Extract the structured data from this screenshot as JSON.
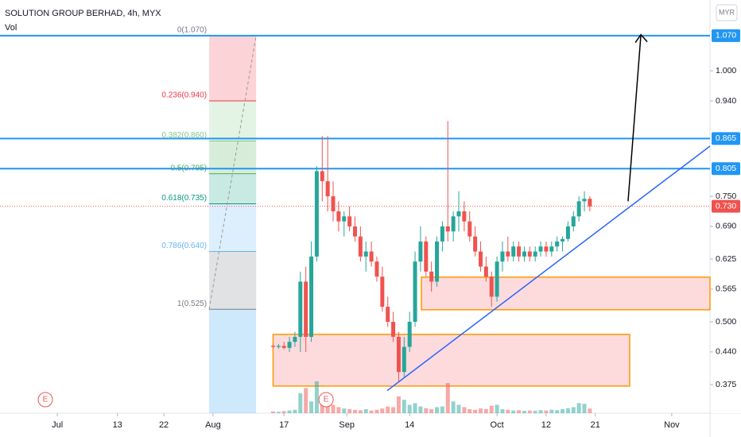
{
  "chart_data": {
    "type": "candlestick",
    "title": "SOLUTION GROUP BERHAD, 4h, MYX",
    "volume_label": "Vol",
    "currency": "MYR",
    "xlim": [
      0,
      260
    ],
    "xticks": [
      {
        "value": 21,
        "label": "Jul"
      },
      {
        "value": 43,
        "label": "13"
      },
      {
        "value": 60,
        "label": "22"
      },
      {
        "value": 78,
        "label": "Aug"
      },
      {
        "value": 104,
        "label": "17"
      },
      {
        "value": 127,
        "label": "Sep"
      },
      {
        "value": 150,
        "label": "14"
      },
      {
        "value": 182,
        "label": "Oct"
      },
      {
        "value": 200,
        "label": "12"
      },
      {
        "value": 218,
        "label": "21"
      },
      {
        "value": 246,
        "label": "Nov"
      }
    ],
    "ylim": [
      0.318,
      1.141
    ],
    "yticks": [
      {
        "value": 1.0,
        "label": "1.000"
      },
      {
        "value": 0.94,
        "label": "0.940"
      },
      {
        "value": 0.75,
        "label": "0.750"
      },
      {
        "value": 0.69,
        "label": "0.690"
      },
      {
        "value": 0.625,
        "label": "0.625"
      },
      {
        "value": 0.565,
        "label": "0.565"
      },
      {
        "value": 0.5,
        "label": "0.500"
      },
      {
        "value": 0.44,
        "label": "0.440"
      },
      {
        "value": 0.375,
        "label": "0.375"
      }
    ],
    "up_color": "#26a69a",
    "down_color": "#ef5350",
    "x": [
      100,
      102,
      104,
      106,
      108,
      110,
      112,
      114,
      116,
      118,
      120,
      122,
      124,
      126,
      128,
      130,
      132,
      134,
      136,
      138,
      140,
      142,
      144,
      146,
      148,
      150,
      152,
      154,
      156,
      158,
      160,
      162,
      164,
      166,
      168,
      170,
      172,
      174,
      176,
      178,
      180,
      182,
      184,
      186,
      188,
      190,
      192,
      194,
      196,
      198,
      200,
      202,
      204,
      206,
      208,
      210,
      212,
      214,
      216
    ],
    "open": [
      0.452,
      0.45,
      0.452,
      0.448,
      0.46,
      0.47,
      0.58,
      0.47,
      0.63,
      0.8,
      0.78,
      0.75,
      0.72,
      0.7,
      0.71,
      0.69,
      0.67,
      0.63,
      0.64,
      0.62,
      0.59,
      0.53,
      0.5,
      0.47,
      0.4,
      0.45,
      0.5,
      0.62,
      0.66,
      0.6,
      0.58,
      0.66,
      0.69,
      0.68,
      0.71,
      0.72,
      0.7,
      0.67,
      0.64,
      0.61,
      0.59,
      0.55,
      0.62,
      0.64,
      0.63,
      0.65,
      0.63,
      0.64,
      0.63,
      0.64,
      0.65,
      0.64,
      0.65,
      0.66,
      0.665,
      0.69,
      0.71,
      0.74,
      0.745
    ],
    "high": [
      0.455,
      0.456,
      0.46,
      0.47,
      0.48,
      0.6,
      0.61,
      0.66,
      0.81,
      0.87,
      0.87,
      0.78,
      0.74,
      0.72,
      0.73,
      0.71,
      0.69,
      0.66,
      0.66,
      0.63,
      0.61,
      0.55,
      0.52,
      0.48,
      0.47,
      0.52,
      0.64,
      0.69,
      0.67,
      0.62,
      0.67,
      0.7,
      0.9,
      0.72,
      0.76,
      0.74,
      0.72,
      0.69,
      0.66,
      0.63,
      0.6,
      0.63,
      0.66,
      0.67,
      0.66,
      0.66,
      0.65,
      0.65,
      0.65,
      0.66,
      0.66,
      0.66,
      0.67,
      0.67,
      0.7,
      0.72,
      0.75,
      0.76,
      0.75
    ],
    "low": [
      0.448,
      0.446,
      0.445,
      0.44,
      0.45,
      0.44,
      0.44,
      0.46,
      0.62,
      0.74,
      0.72,
      0.7,
      0.68,
      0.67,
      0.68,
      0.66,
      0.62,
      0.6,
      0.61,
      0.58,
      0.52,
      0.49,
      0.46,
      0.38,
      0.39,
      0.44,
      0.49,
      0.6,
      0.59,
      0.56,
      0.57,
      0.64,
      0.66,
      0.66,
      0.68,
      0.68,
      0.66,
      0.63,
      0.6,
      0.58,
      0.53,
      0.54,
      0.6,
      0.62,
      0.62,
      0.62,
      0.62,
      0.62,
      0.62,
      0.63,
      0.63,
      0.63,
      0.64,
      0.64,
      0.66,
      0.68,
      0.7,
      0.72,
      0.72
    ],
    "close": [
      0.45,
      0.452,
      0.448,
      0.46,
      0.47,
      0.58,
      0.47,
      0.63,
      0.8,
      0.78,
      0.75,
      0.72,
      0.7,
      0.71,
      0.69,
      0.67,
      0.63,
      0.64,
      0.62,
      0.59,
      0.53,
      0.5,
      0.47,
      0.4,
      0.45,
      0.5,
      0.62,
      0.66,
      0.6,
      0.58,
      0.66,
      0.69,
      0.68,
      0.71,
      0.72,
      0.7,
      0.67,
      0.64,
      0.61,
      0.59,
      0.55,
      0.62,
      0.64,
      0.63,
      0.65,
      0.63,
      0.64,
      0.63,
      0.64,
      0.65,
      0.64,
      0.65,
      0.66,
      0.665,
      0.69,
      0.71,
      0.74,
      0.745,
      0.73
    ],
    "volume": [
      5,
      4,
      6,
      8,
      10,
      60,
      75,
      35,
      95,
      55,
      40,
      25,
      18,
      14,
      12,
      10,
      9,
      12,
      8,
      10,
      14,
      20,
      18,
      50,
      40,
      25,
      30,
      20,
      15,
      12,
      18,
      20,
      90,
      35,
      25,
      18,
      12,
      10,
      14,
      12,
      22,
      25,
      12,
      10,
      8,
      9,
      7,
      8,
      7,
      9,
      8,
      10,
      9,
      12,
      15,
      18,
      30,
      28,
      14
    ],
    "fib_levels": [
      {
        "label": "0(1.070)",
        "price": 1.07,
        "color": "#787b86",
        "fill": "rgba(242,54,69,0.22)"
      },
      {
        "label": "0.236(0.940)",
        "price": 0.94,
        "color": "#f23645",
        "fill": "rgba(129,199,132,0.22)"
      },
      {
        "label": "0.382(0.860)",
        "price": 0.86,
        "color": "#81c784",
        "fill": "rgba(76,175,80,0.22)"
      },
      {
        "label": "0.5(0.795)",
        "price": 0.795,
        "color": "#4caf50",
        "fill": "rgba(8,153,129,0.22)"
      },
      {
        "label": "0.618(0.735)",
        "price": 0.735,
        "color": "#089981",
        "fill": "rgba(100,181,246,0.22)"
      },
      {
        "label": "0.786(0.640)",
        "price": 0.64,
        "color": "#64b5f6",
        "fill": "rgba(120,123,134,0.22)"
      },
      {
        "label": "1(0.525)",
        "price": 0.525,
        "color": "#787b86",
        "fill": "rgba(33,150,243,0.22)"
      }
    ],
    "fib_x": [
      76.6,
      93.8
    ],
    "horizontal_lines": [
      {
        "value": 1.07,
        "label": "1.070",
        "color": "#2196f3"
      },
      {
        "value": 0.865,
        "label": "0.865",
        "color": "#2196f3"
      },
      {
        "value": 0.805,
        "label": "0.805",
        "color": "#2196f3"
      }
    ],
    "last_price": {
      "value": 0.73,
      "label": "0.730",
      "color": "#ef5350"
    },
    "zones": [
      {
        "x": [
          100,
          230.6
        ],
        "price": [
          0.475,
          0.372
        ]
      },
      {
        "x": [
          154.3,
          260
        ],
        "price": [
          0.589,
          0.524
        ]
      }
    ],
    "trendline": {
      "x": [
        141.8,
        260
      ],
      "price": [
        0.363,
        0.85
      ]
    },
    "arrow": {
      "x": [
        230,
        234.7
      ],
      "price": [
        0.74,
        1.072
      ]
    },
    "events": [
      {
        "x": 16.6,
        "label": "E"
      },
      {
        "x": 119.4,
        "label": "E"
      }
    ]
  }
}
